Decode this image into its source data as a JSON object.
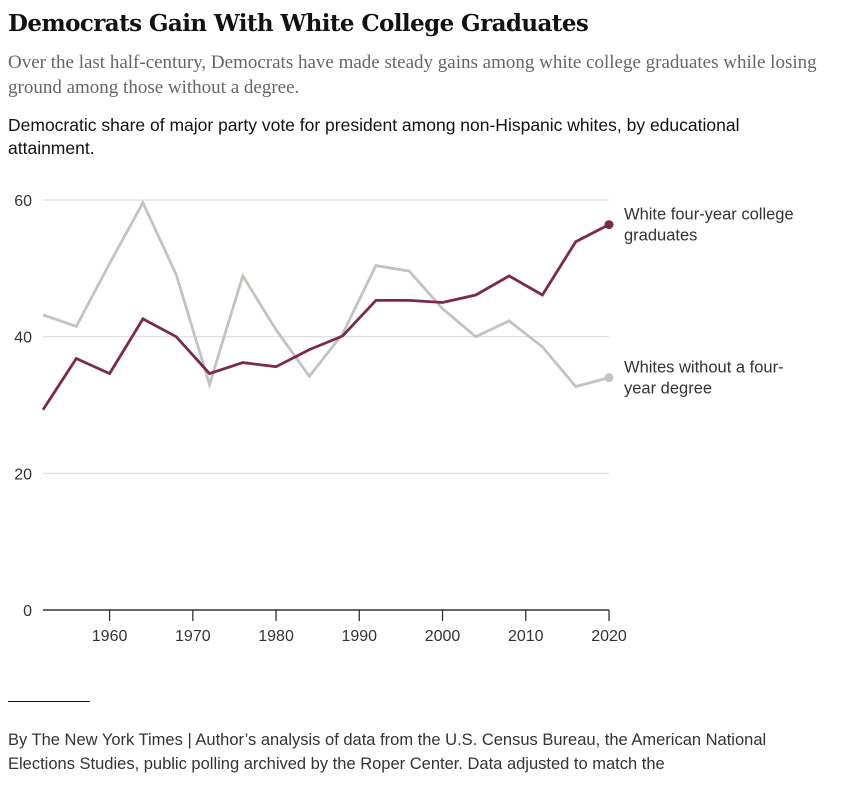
{
  "header": {
    "title": "Democrats Gain With White College Graduates",
    "subtitle": "Over the last half-century, Democrats have made steady gains among white college graduates while losing ground among those without a degree.",
    "chart_label": "Democratic share of major party vote for president among non-Hispanic whites, by educational attainment."
  },
  "chart_data": {
    "type": "line",
    "title": "Democratic share of major party vote for president among non-Hispanic whites, by educational attainment.",
    "xlabel": "",
    "ylabel": "",
    "x": [
      1952,
      1956,
      1960,
      1964,
      1968,
      1972,
      1976,
      1980,
      1984,
      1988,
      1992,
      1996,
      2000,
      2004,
      2008,
      2012,
      2016,
      2020
    ],
    "xlim": [
      1952,
      2020
    ],
    "ylim": [
      0,
      60
    ],
    "xticks": [
      1960,
      1970,
      1980,
      1990,
      2000,
      2010,
      2020
    ],
    "xtick_labels": [
      "1960",
      "1970",
      "1980",
      "1990",
      "2000",
      "2010",
      "2020"
    ],
    "yticks": [
      0,
      20,
      40,
      60
    ],
    "ytick_labels": [
      "0",
      "20",
      "40",
      "60"
    ],
    "grid": true,
    "legend": "direct labels at right end of lines",
    "series": [
      {
        "name": "White four-year college graduates",
        "label_lines": [
          "White four-year college",
          "graduates"
        ],
        "color": "#7a2a4a",
        "values": [
          29.3,
          36.8,
          34.6,
          42.6,
          40.0,
          34.6,
          36.2,
          35.6,
          38.1,
          40.1,
          45.3,
          45.3,
          45.0,
          46.1,
          48.9,
          46.1,
          53.9,
          56.4
        ]
      },
      {
        "name": "Whites without a four-year degree",
        "label_lines": [
          "Whites without a four-",
          "year degree"
        ],
        "color": "#c5c3be",
        "values": [
          43.2,
          41.5,
          50.7,
          59.6,
          49.1,
          33.0,
          48.9,
          41.0,
          34.2,
          40.4,
          50.4,
          49.6,
          44.1,
          40.0,
          42.3,
          38.5,
          32.7,
          34.0
        ]
      }
    ]
  },
  "footer": {
    "source": "By The New York Times | Author’s analysis of data from the U.S. Census Bureau, the American National Elections Studies, public polling archived by the Roper Center. Data adjusted to match the"
  }
}
